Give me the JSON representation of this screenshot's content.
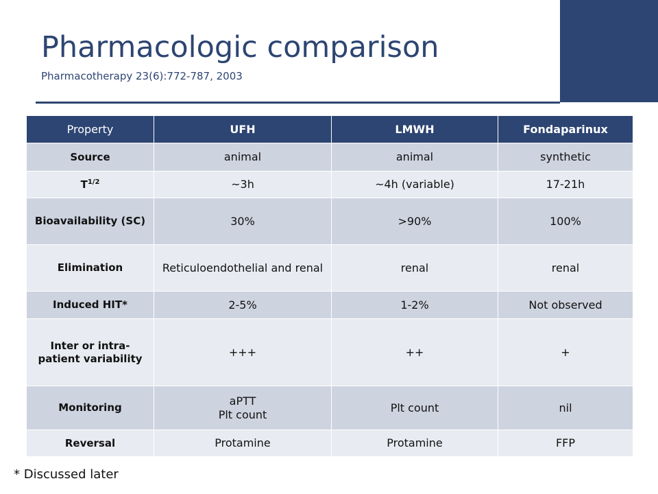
{
  "slide": {
    "title": "Pharmacologic comparison",
    "citation": "Pharmacotherapy 23(6):772-787, 2003",
    "footnote": "* Discussed later"
  },
  "colors": {
    "accent": "#2d4572",
    "row_dark": "#cdd3df",
    "row_light": "#e8ebf1"
  },
  "table": {
    "headers": [
      "Property",
      "UFH",
      "LMWH",
      "Fondaparinux"
    ],
    "rows": [
      {
        "property": "Source",
        "values": [
          "animal",
          "animal",
          "synthetic"
        ]
      },
      {
        "property": "T",
        "property_sup": "1/2",
        "values": [
          "~3h",
          "~4h (variable)",
          "17-21h"
        ]
      },
      {
        "property": "Bioavailability (SC)",
        "values": [
          "30%",
          ">90%",
          "100%"
        ]
      },
      {
        "property": "Elimination",
        "values": [
          "Reticuloendothelial and renal",
          "renal",
          "renal"
        ]
      },
      {
        "property": "Induced HIT*",
        "values": [
          "2-5%",
          "1-2%",
          "Not observed"
        ]
      },
      {
        "property": "Inter or intra-patient variability",
        "values": [
          "+++",
          "++",
          "+"
        ]
      },
      {
        "property": "Monitoring",
        "values": [
          "aPTT\nPlt count",
          "Plt count",
          "nil"
        ]
      },
      {
        "property": "Reversal",
        "values": [
          "Protamine",
          "Protamine",
          "FFP"
        ]
      }
    ]
  }
}
